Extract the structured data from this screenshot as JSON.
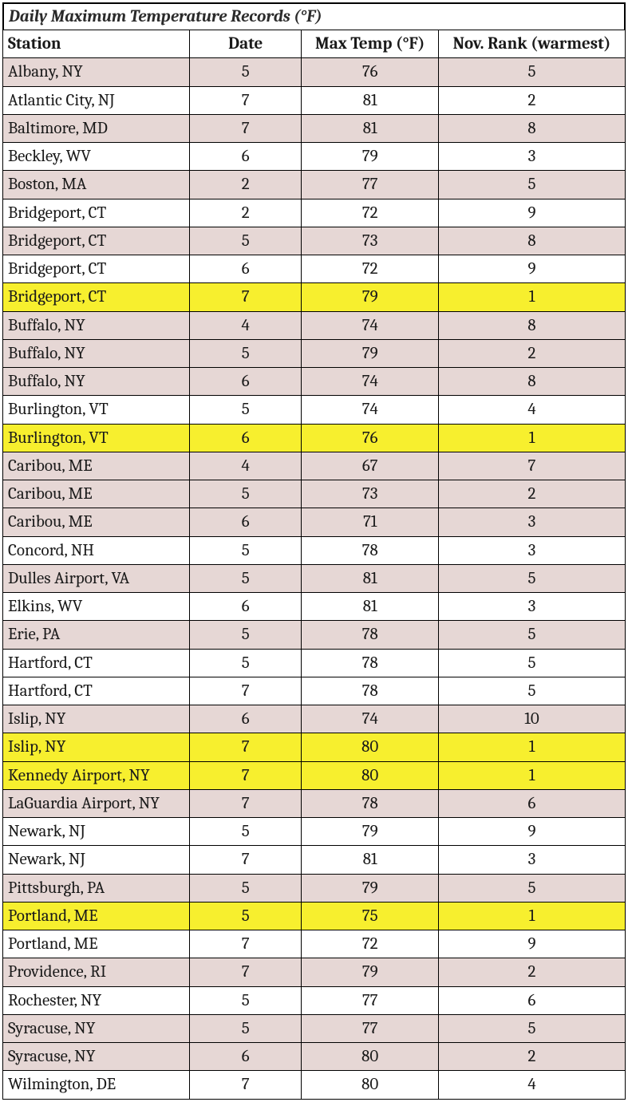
{
  "table": {
    "title": "Daily Maximum Temperature Records (°F)",
    "title_fontsize": 21,
    "title_fontstyle": "italic",
    "font_family": "Cambria",
    "header_fontweight": "bold",
    "body_fontsize": 21,
    "border_color": "#000000",
    "colors": {
      "shade": "#e6d7d5",
      "plain": "#ffffff",
      "highlight": "#f7ef2e",
      "text": "#1a1a1a"
    },
    "columns": [
      {
        "key": "station",
        "label": "Station",
        "align": "left",
        "width_pct": 30
      },
      {
        "key": "date",
        "label": "Date",
        "align": "center",
        "width_pct": 18
      },
      {
        "key": "max_temp",
        "label": "Max Temp (°F)",
        "align": "center",
        "width_pct": 22
      },
      {
        "key": "nov_rank",
        "label": "Nov. Rank (warmest)",
        "align": "center",
        "width_pct": 30
      }
    ],
    "rows": [
      {
        "station": "Albany, NY",
        "date": 5,
        "max_temp": 76,
        "nov_rank": 5,
        "style": "shade"
      },
      {
        "station": "Atlantic City, NJ",
        "date": 7,
        "max_temp": 81,
        "nov_rank": 2,
        "style": "plain"
      },
      {
        "station": "Baltimore, MD",
        "date": 7,
        "max_temp": 81,
        "nov_rank": 8,
        "style": "shade"
      },
      {
        "station": "Beckley, WV",
        "date": 6,
        "max_temp": 79,
        "nov_rank": 3,
        "style": "plain"
      },
      {
        "station": "Boston, MA",
        "date": 2,
        "max_temp": 77,
        "nov_rank": 5,
        "style": "shade"
      },
      {
        "station": "Bridgeport, CT",
        "date": 2,
        "max_temp": 72,
        "nov_rank": 9,
        "style": "plain"
      },
      {
        "station": "Bridgeport, CT",
        "date": 5,
        "max_temp": 73,
        "nov_rank": 8,
        "style": "shade"
      },
      {
        "station": "Bridgeport, CT",
        "date": 6,
        "max_temp": 72,
        "nov_rank": 9,
        "style": "plain"
      },
      {
        "station": "Bridgeport, CT",
        "date": 7,
        "max_temp": 79,
        "nov_rank": 1,
        "style": "highlight"
      },
      {
        "station": "Buffalo, NY",
        "date": 4,
        "max_temp": 74,
        "nov_rank": 8,
        "style": "shade"
      },
      {
        "station": "Buffalo, NY",
        "date": 5,
        "max_temp": 79,
        "nov_rank": 2,
        "style": "shade"
      },
      {
        "station": "Buffalo, NY",
        "date": 6,
        "max_temp": 74,
        "nov_rank": 8,
        "style": "shade"
      },
      {
        "station": "Burlington, VT",
        "date": 5,
        "max_temp": 74,
        "nov_rank": 4,
        "style": "plain"
      },
      {
        "station": "Burlington, VT",
        "date": 6,
        "max_temp": 76,
        "nov_rank": 1,
        "style": "highlight"
      },
      {
        "station": "Caribou, ME",
        "date": 4,
        "max_temp": 67,
        "nov_rank": 7,
        "style": "shade"
      },
      {
        "station": "Caribou, ME",
        "date": 5,
        "max_temp": 73,
        "nov_rank": 2,
        "style": "shade"
      },
      {
        "station": "Caribou, ME",
        "date": 6,
        "max_temp": 71,
        "nov_rank": 3,
        "style": "shade"
      },
      {
        "station": "Concord, NH",
        "date": 5,
        "max_temp": 78,
        "nov_rank": 3,
        "style": "plain"
      },
      {
        "station": "Dulles Airport, VA",
        "date": 5,
        "max_temp": 81,
        "nov_rank": 5,
        "style": "shade"
      },
      {
        "station": "Elkins, WV",
        "date": 6,
        "max_temp": 81,
        "nov_rank": 3,
        "style": "plain"
      },
      {
        "station": "Erie, PA",
        "date": 5,
        "max_temp": 78,
        "nov_rank": 5,
        "style": "shade"
      },
      {
        "station": "Hartford, CT",
        "date": 5,
        "max_temp": 78,
        "nov_rank": 5,
        "style": "plain"
      },
      {
        "station": "Hartford, CT",
        "date": 7,
        "max_temp": 78,
        "nov_rank": 5,
        "style": "plain"
      },
      {
        "station": "Islip, NY",
        "date": 6,
        "max_temp": 74,
        "nov_rank": 10,
        "style": "shade"
      },
      {
        "station": "Islip, NY",
        "date": 7,
        "max_temp": 80,
        "nov_rank": 1,
        "style": "highlight"
      },
      {
        "station": "Kennedy Airport, NY",
        "date": 7,
        "max_temp": 80,
        "nov_rank": 1,
        "style": "highlight"
      },
      {
        "station": "LaGuardia Airport, NY",
        "date": 7,
        "max_temp": 78,
        "nov_rank": 6,
        "style": "shade"
      },
      {
        "station": "Newark, NJ",
        "date": 5,
        "max_temp": 79,
        "nov_rank": 9,
        "style": "plain"
      },
      {
        "station": "Newark, NJ",
        "date": 7,
        "max_temp": 81,
        "nov_rank": 3,
        "style": "plain"
      },
      {
        "station": "Pittsburgh, PA",
        "date": 5,
        "max_temp": 79,
        "nov_rank": 5,
        "style": "shade"
      },
      {
        "station": "Portland, ME",
        "date": 5,
        "max_temp": 75,
        "nov_rank": 1,
        "style": "highlight"
      },
      {
        "station": "Portland, ME",
        "date": 7,
        "max_temp": 72,
        "nov_rank": 9,
        "style": "plain"
      },
      {
        "station": "Providence, RI",
        "date": 7,
        "max_temp": 79,
        "nov_rank": 2,
        "style": "shade"
      },
      {
        "station": "Rochester, NY",
        "date": 5,
        "max_temp": 77,
        "nov_rank": 6,
        "style": "plain"
      },
      {
        "station": "Syracuse, NY",
        "date": 5,
        "max_temp": 77,
        "nov_rank": 5,
        "style": "shade"
      },
      {
        "station": "Syracuse, NY",
        "date": 6,
        "max_temp": 80,
        "nov_rank": 2,
        "style": "shade"
      },
      {
        "station": "Wilmington, DE",
        "date": 7,
        "max_temp": 80,
        "nov_rank": 4,
        "style": "plain"
      }
    ]
  }
}
